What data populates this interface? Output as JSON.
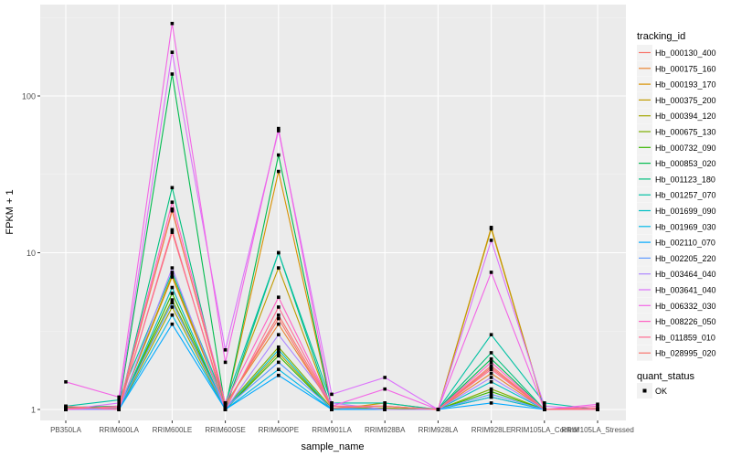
{
  "chart_data": {
    "type": "line",
    "xlabel": "sample_name",
    "ylabel": "FPKM + 1",
    "y_scale": "log10",
    "ylim": [
      0.95,
      300
    ],
    "y_ticks": [
      1,
      10,
      100
    ],
    "y_tick_labels": [
      "1",
      "10",
      "100"
    ],
    "grid": true,
    "legend_position": "right",
    "categories": [
      "PB350LA",
      "RRIM600LA",
      "RRIM600LE",
      "RRIM600SE",
      "RRIM600PE",
      "RRIM901LA",
      "RRIM928BA",
      "RRIM928LA",
      "RRIM928LE",
      "RRIM105LA_Control",
      "RRIM105LA_Stressed"
    ],
    "series": [
      {
        "name": "Hb_000130_400",
        "color": "#F8766D",
        "values": [
          1.02,
          1.02,
          13.5,
          1.05,
          4.0,
          1.05,
          1.05,
          1.0,
          1.9,
          1.0,
          1.0
        ]
      },
      {
        "name": "Hb_000175_160",
        "color": "#EA8331",
        "values": [
          1.0,
          1.03,
          18.5,
          1.08,
          3.5,
          1.05,
          1.0,
          1.0,
          1.7,
          1.0,
          1.0
        ]
      },
      {
        "name": "Hb_000193_170",
        "color": "#D89000",
        "values": [
          1.0,
          1.02,
          7.0,
          1.02,
          33.0,
          1.02,
          1.02,
          1.0,
          14.5,
          1.0,
          1.0
        ]
      },
      {
        "name": "Hb_000375_200",
        "color": "#C09B00",
        "values": [
          1.0,
          1.02,
          7.2,
          1.05,
          8.0,
          1.0,
          1.1,
          1.0,
          14.2,
          1.0,
          1.0
        ]
      },
      {
        "name": "Hb_000394_120",
        "color": "#A3A500",
        "values": [
          1.0,
          1.0,
          4.5,
          1.0,
          2.3,
          1.0,
          1.0,
          1.0,
          1.2,
          1.0,
          1.0
        ]
      },
      {
        "name": "Hb_000675_130",
        "color": "#7CAE00",
        "values": [
          1.02,
          1.05,
          5.0,
          1.02,
          2.5,
          1.02,
          1.02,
          1.0,
          1.35,
          1.0,
          1.0
        ]
      },
      {
        "name": "Hb_000732_090",
        "color": "#39B600",
        "values": [
          1.0,
          1.0,
          5.5,
          1.0,
          2.2,
          1.0,
          1.0,
          1.0,
          1.3,
          1.0,
          1.0
        ]
      },
      {
        "name": "Hb_000853_020",
        "color": "#00BB4E",
        "values": [
          1.03,
          1.05,
          138.0,
          1.02,
          42.0,
          1.02,
          1.0,
          1.0,
          2.1,
          1.0,
          1.0
        ]
      },
      {
        "name": "Hb_001123_180",
        "color": "#00BF7D",
        "values": [
          1.0,
          1.02,
          26.0,
          1.0,
          10.0,
          1.0,
          1.0,
          1.0,
          2.3,
          1.0,
          1.0
        ]
      },
      {
        "name": "Hb_001257_070",
        "color": "#00C1A3",
        "values": [
          1.05,
          1.15,
          7.5,
          1.1,
          10.0,
          1.1,
          1.1,
          1.0,
          3.0,
          1.1,
          1.0
        ]
      },
      {
        "name": "Hb_001699_090",
        "color": "#00BFC4",
        "values": [
          1.0,
          1.0,
          6.0,
          1.0,
          2.4,
          1.0,
          1.0,
          1.0,
          1.5,
          1.0,
          1.0
        ]
      },
      {
        "name": "Hb_001969_030",
        "color": "#00B8E7",
        "values": [
          1.0,
          1.0,
          4.0,
          1.0,
          1.8,
          1.0,
          1.0,
          1.0,
          1.2,
          1.0,
          1.0
        ]
      },
      {
        "name": "Hb_002110_070",
        "color": "#00A9FF",
        "values": [
          1.0,
          1.0,
          3.5,
          1.0,
          1.65,
          1.0,
          1.0,
          1.0,
          1.1,
          1.0,
          1.0
        ]
      },
      {
        "name": "Hb_002205_220",
        "color": "#619CFF",
        "values": [
          1.0,
          1.02,
          4.8,
          1.02,
          2.0,
          1.02,
          1.0,
          1.0,
          1.25,
          1.0,
          1.0
        ]
      },
      {
        "name": "Hb_003464_040",
        "color": "#AE87FF",
        "values": [
          1.0,
          1.0,
          8.0,
          1.0,
          3.0,
          1.1,
          1.0,
          1.0,
          1.6,
          1.0,
          1.0
        ]
      },
      {
        "name": "Hb_003641_040",
        "color": "#DB72FB",
        "values": [
          1.0,
          1.1,
          190.0,
          2.4,
          60.0,
          1.25,
          1.6,
          1.0,
          12.0,
          1.05,
          1.0
        ]
      },
      {
        "name": "Hb_006332_030",
        "color": "#F365E6",
        "values": [
          1.5,
          1.2,
          290.0,
          2.0,
          62.0,
          1.05,
          1.35,
          1.0,
          7.5,
          1.0,
          1.08
        ]
      },
      {
        "name": "Hb_008226_050",
        "color": "#FF61C3",
        "values": [
          1.0,
          1.05,
          21.0,
          1.1,
          5.2,
          1.05,
          1.05,
          1.0,
          2.0,
          1.0,
          1.05
        ]
      },
      {
        "name": "Hb_011859_010",
        "color": "#FF6C91",
        "values": [
          1.05,
          1.0,
          14.0,
          1.0,
          4.5,
          1.05,
          1.05,
          1.0,
          1.8,
          1.0,
          1.0
        ]
      },
      {
        "name": "Hb_028995_020",
        "color": "#F8766D",
        "values": [
          1.02,
          1.03,
          19.0,
          1.06,
          3.8,
          1.02,
          1.05,
          1.0,
          1.85,
          1.0,
          1.02
        ]
      }
    ],
    "legend": {
      "title": "tracking_id",
      "quant_title": "quant_status",
      "quant_label": "OK"
    }
  }
}
